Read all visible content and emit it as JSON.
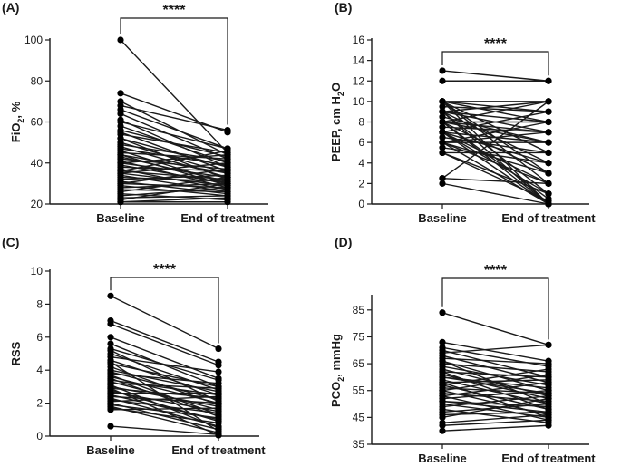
{
  "chart_data": [
    {
      "type": "line",
      "panel_label": "(A)",
      "ylabel_main": "FiO",
      "ylabel_sub": "2",
      "ylabel_tail": ", %",
      "categories": [
        "Baseline",
        "End of treatment"
      ],
      "ylim": [
        20,
        100
      ],
      "yticks": [
        20,
        40,
        60,
        80,
        100
      ],
      "significance": "****",
      "pairs": [
        [
          100,
          45
        ],
        [
          74,
          55
        ],
        [
          70,
          44
        ],
        [
          68,
          56
        ],
        [
          66,
          47
        ],
        [
          64,
          42
        ],
        [
          61,
          38
        ],
        [
          60,
          47
        ],
        [
          58,
          40
        ],
        [
          56,
          43
        ],
        [
          55,
          36
        ],
        [
          54,
          45
        ],
        [
          52,
          38
        ],
        [
          50,
          35
        ],
        [
          49,
          41
        ],
        [
          48,
          33
        ],
        [
          47,
          39
        ],
        [
          46,
          30
        ],
        [
          45,
          42
        ],
        [
          44,
          35
        ],
        [
          43,
          31
        ],
        [
          42,
          37
        ],
        [
          41,
          28
        ],
        [
          40,
          33
        ],
        [
          40,
          44
        ],
        [
          39,
          30
        ],
        [
          38,
          36
        ],
        [
          37,
          27
        ],
        [
          36,
          32
        ],
        [
          35,
          29
        ],
        [
          35,
          40
        ],
        [
          34,
          26
        ],
        [
          33,
          31
        ],
        [
          32,
          34
        ],
        [
          31,
          25
        ],
        [
          30,
          28
        ],
        [
          30,
          37
        ],
        [
          29,
          24
        ],
        [
          28,
          30
        ],
        [
          27,
          26
        ],
        [
          26,
          33
        ],
        [
          25,
          22
        ],
        [
          24,
          28
        ],
        [
          23,
          24
        ],
        [
          22,
          30
        ],
        [
          21,
          23
        ],
        [
          21,
          21
        ],
        [
          36,
          46
        ],
        [
          44,
          29
        ],
        [
          52,
          32
        ]
      ]
    },
    {
      "type": "line",
      "panel_label": "(B)",
      "ylabel_main": "PEEP, cm H",
      "ylabel_sub": "2",
      "ylabel_tail": "O",
      "categories": [
        "Baseline",
        "End of treatment"
      ],
      "ylim": [
        0,
        16
      ],
      "yticks": [
        0,
        2,
        4,
        6,
        8,
        10,
        12,
        14,
        16
      ],
      "significance": "****",
      "pairs": [
        [
          13,
          12
        ],
        [
          12,
          12
        ],
        [
          10,
          10
        ],
        [
          10,
          8
        ],
        [
          10,
          5
        ],
        [
          10,
          2
        ],
        [
          10,
          0
        ],
        [
          9.5,
          9
        ],
        [
          9,
          7
        ],
        [
          9,
          4
        ],
        [
          9,
          1
        ],
        [
          9,
          10
        ],
        [
          8.5,
          6
        ],
        [
          8,
          8
        ],
        [
          8,
          3
        ],
        [
          8,
          0.5
        ],
        [
          8,
          10
        ],
        [
          7.5,
          7
        ],
        [
          7,
          6
        ],
        [
          7,
          2
        ],
        [
          7,
          0
        ],
        [
          7,
          9
        ],
        [
          6.5,
          5
        ],
        [
          6,
          6
        ],
        [
          6,
          3
        ],
        [
          6,
          0
        ],
        [
          6,
          8
        ],
        [
          5.5,
          4
        ],
        [
          5,
          5
        ],
        [
          5,
          1
        ],
        [
          2.5,
          2
        ],
        [
          2.5,
          10
        ],
        [
          2,
          0
        ],
        [
          9,
          0
        ],
        [
          8,
          0
        ],
        [
          10,
          3
        ],
        [
          7,
          1
        ],
        [
          6,
          2
        ],
        [
          8,
          6
        ],
        [
          9,
          8
        ],
        [
          10,
          9
        ],
        [
          7,
          4
        ],
        [
          8,
          7
        ],
        [
          5,
          0.3
        ],
        [
          6,
          7
        ]
      ]
    },
    {
      "type": "line",
      "panel_label": "(C)",
      "ylabel_main": "RSS",
      "ylabel_sub": "",
      "ylabel_tail": "",
      "categories": [
        "Baseline",
        "End of treatment"
      ],
      "ylim": [
        0,
        10
      ],
      "yticks": [
        0,
        2,
        4,
        6,
        8,
        10
      ],
      "significance": "****",
      "pairs": [
        [
          8.5,
          5.3
        ],
        [
          7.0,
          4.5
        ],
        [
          6.8,
          4.3
        ],
        [
          6.0,
          3.5
        ],
        [
          5.6,
          3.0
        ],
        [
          5.3,
          3.4
        ],
        [
          5.0,
          2.8
        ],
        [
          4.8,
          3.9
        ],
        [
          4.6,
          2.5
        ],
        [
          4.4,
          3.0
        ],
        [
          4.2,
          1.9
        ],
        [
          4.0,
          2.7
        ],
        [
          3.9,
          2.2
        ],
        [
          3.8,
          3.2
        ],
        [
          3.6,
          2.0
        ],
        [
          3.5,
          1.2
        ],
        [
          3.4,
          2.5
        ],
        [
          3.3,
          1.6
        ],
        [
          3.2,
          2.9
        ],
        [
          3.0,
          1.8
        ],
        [
          2.9,
          2.3
        ],
        [
          2.8,
          0.9
        ],
        [
          2.7,
          1.5
        ],
        [
          2.6,
          2.6
        ],
        [
          2.5,
          1.0
        ],
        [
          2.4,
          2.0
        ],
        [
          2.3,
          0.6
        ],
        [
          2.2,
          1.4
        ],
        [
          2.1,
          2.4
        ],
        [
          2.0,
          0.4
        ],
        [
          1.9,
          1.1
        ],
        [
          1.8,
          0.2
        ],
        [
          1.7,
          0.8
        ],
        [
          1.6,
          1.7
        ],
        [
          0.6,
          0.1
        ],
        [
          4.5,
          0.3
        ],
        [
          3.1,
          0.5
        ],
        [
          2.9,
          0.05
        ],
        [
          5.2,
          2.1
        ],
        [
          3.7,
          1.3
        ]
      ]
    },
    {
      "type": "line",
      "panel_label": "(D)",
      "ylabel_main": "PCO",
      "ylabel_sub": "2",
      "ylabel_tail": ", mmHg",
      "categories": [
        "Baseline",
        "End of treatment"
      ],
      "ylim": [
        35,
        90
      ],
      "yticks": [
        35,
        45,
        55,
        65,
        75,
        85
      ],
      "significance": "****",
      "pairs": [
        [
          84,
          72
        ],
        [
          73,
          66
        ],
        [
          71,
          64
        ],
        [
          70,
          60
        ],
        [
          69,
          72
        ],
        [
          68,
          58
        ],
        [
          67,
          65
        ],
        [
          66,
          55
        ],
        [
          65,
          62
        ],
        [
          64,
          57
        ],
        [
          63,
          53
        ],
        [
          62,
          60
        ],
        [
          61,
          52
        ],
        [
          60,
          56
        ],
        [
          59,
          50
        ],
        [
          58,
          59
        ],
        [
          57,
          48
        ],
        [
          56,
          54
        ],
        [
          55,
          46
        ],
        [
          55,
          61
        ],
        [
          54,
          51
        ],
        [
          53,
          44
        ],
        [
          52,
          55
        ],
        [
          51,
          49
        ],
        [
          50,
          45
        ],
        [
          49,
          53
        ],
        [
          48,
          43
        ],
        [
          47,
          50
        ],
        [
          46,
          47
        ],
        [
          45,
          52
        ],
        [
          43,
          46
        ],
        [
          42,
          44
        ],
        [
          40,
          42
        ],
        [
          62,
          48
        ],
        [
          58,
          45
        ],
        [
          53,
          58
        ],
        [
          66,
          50
        ],
        [
          57,
          63
        ],
        [
          51,
          47
        ],
        [
          60,
          54
        ]
      ]
    }
  ]
}
